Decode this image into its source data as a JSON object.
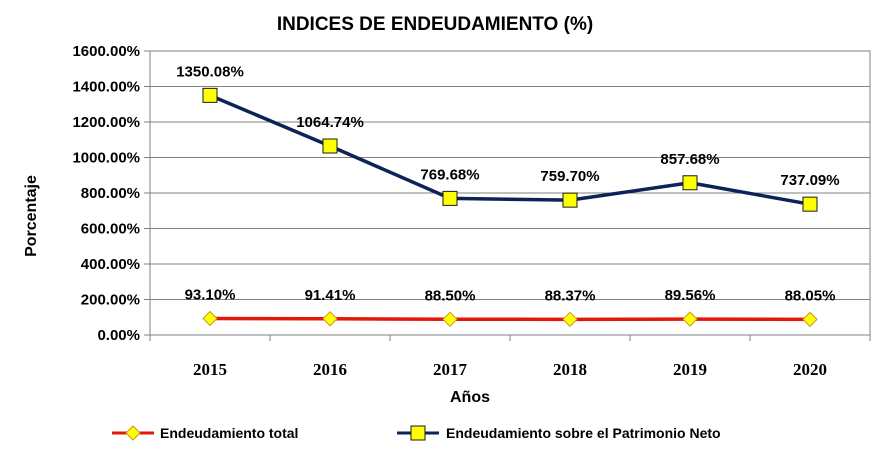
{
  "chart_data": {
    "type": "line",
    "title": "INDICES DE ENDEUDAMIENTO (%)",
    "xlabel": "Años",
    "ylabel": "Porcentaje",
    "categories": [
      "2015",
      "2016",
      "2017",
      "2018",
      "2019",
      "2020"
    ],
    "ylim": [
      0,
      1600
    ],
    "yticks": [
      "0.00%",
      "200.00%",
      "400.00%",
      "600.00%",
      "800.00%",
      "1000.00%",
      "1200.00%",
      "1400.00%",
      "1600.00%"
    ],
    "grid": true,
    "legend_position": "bottom",
    "series": [
      {
        "name": "Endeudamiento total",
        "values": [
          93.1,
          91.41,
          88.5,
          88.37,
          89.56,
          88.05
        ],
        "labels": [
          "93.10%",
          "91.41%",
          "88.50%",
          "88.37%",
          "89.56%",
          "88.05%"
        ],
        "line_color": "#e3170a",
        "marker": "diamond",
        "marker_color": "#ffff00"
      },
      {
        "name": "Endeudamiento sobre el Patrimonio Neto",
        "values": [
          1350.08,
          1064.74,
          769.68,
          759.7,
          857.68,
          737.09
        ],
        "labels": [
          "1350.08%",
          "1064.74%",
          "769.68%",
          "759.70%",
          "857.68%",
          "737.09%"
        ],
        "line_color": "#0d2257",
        "marker": "square",
        "marker_color": "#ffff00"
      }
    ]
  }
}
